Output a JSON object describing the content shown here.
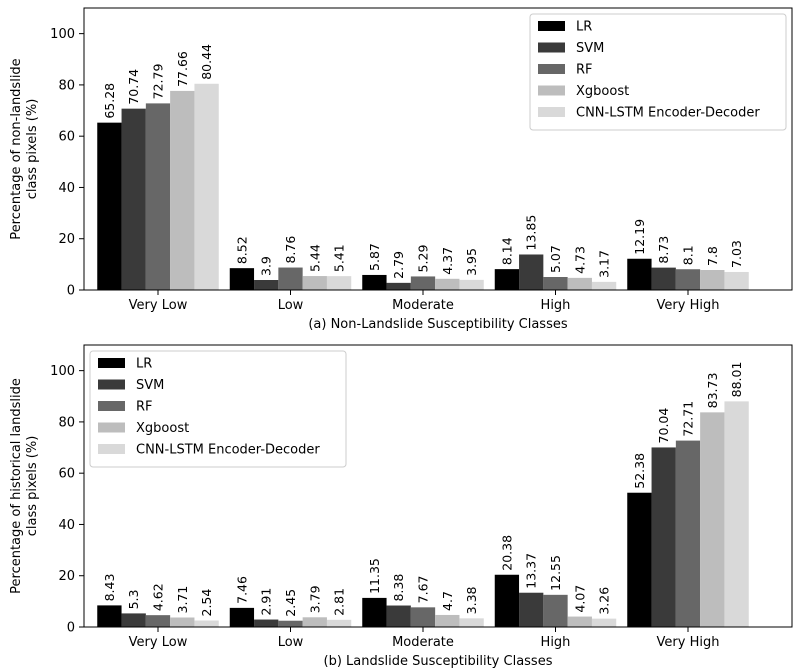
{
  "chart_data": [
    {
      "type": "bar",
      "categories": [
        "Very Low",
        "Low",
        "Moderate",
        "High",
        "Very High"
      ],
      "series": [
        {
          "name": "LR",
          "values": [
            65.28,
            8.52,
            5.87,
            8.14,
            12.19
          ]
        },
        {
          "name": "SVM",
          "values": [
            70.74,
            3.9,
            2.79,
            13.85,
            8.73
          ]
        },
        {
          "name": "RF",
          "values": [
            72.79,
            8.76,
            5.29,
            5.07,
            8.1
          ]
        },
        {
          "name": "Xgboost",
          "values": [
            77.66,
            5.44,
            4.37,
            4.73,
            7.8
          ]
        },
        {
          "name": "CNN-LSTM Encoder-Decoder",
          "values": [
            80.44,
            5.41,
            3.95,
            3.17,
            7.03
          ]
        }
      ],
      "value_labels": [
        [
          "65.28",
          "8.52",
          "5.87",
          "8.14",
          "12.19"
        ],
        [
          "70.74",
          "3.9",
          "2.79",
          "13.85",
          "8.73"
        ],
        [
          "72.79",
          "8.76",
          "5.29",
          "5.07",
          "8.1"
        ],
        [
          "77.66",
          "5.44",
          "4.37",
          "4.73",
          "7.8"
        ],
        [
          "80.44",
          "5.41",
          "3.95",
          "3.17",
          "7.03"
        ]
      ],
      "xlabel": "(a) Non-Landslide Susceptibility Classes",
      "ylabel_lines": [
        "Percentage of non-landslide",
        "class pixels (%)"
      ],
      "ylim": [
        0,
        110
      ],
      "yticks": [
        0,
        20,
        40,
        60,
        80,
        100
      ],
      "legend_position": "top-right",
      "grid": false
    },
    {
      "type": "bar",
      "categories": [
        "Very Low",
        "Low",
        "Moderate",
        "High",
        "Very High"
      ],
      "series": [
        {
          "name": "LR",
          "values": [
            8.43,
            7.46,
            11.35,
            20.38,
            52.38
          ]
        },
        {
          "name": "SVM",
          "values": [
            5.3,
            2.91,
            8.38,
            13.37,
            70.04
          ]
        },
        {
          "name": "RF",
          "values": [
            4.62,
            2.45,
            7.67,
            12.55,
            72.71
          ]
        },
        {
          "name": "Xgboost",
          "values": [
            3.71,
            3.79,
            4.7,
            4.07,
            83.73
          ]
        },
        {
          "name": "CNN-LSTM Encoder-Decoder",
          "values": [
            2.54,
            2.81,
            3.38,
            3.26,
            88.01
          ]
        }
      ],
      "value_labels": [
        [
          "8.43",
          "7.46",
          "11.35",
          "20.38",
          "52.38"
        ],
        [
          "5.3",
          "2.91",
          "8.38",
          "13.37",
          "70.04"
        ],
        [
          "4.62",
          "2.45",
          "7.67",
          "12.55",
          "72.71"
        ],
        [
          "3.71",
          "3.79",
          "4.7",
          "4.07",
          "83.73"
        ],
        [
          "2.54",
          "2.81",
          "3.38",
          "3.26",
          "88.01"
        ]
      ],
      "xlabel": "(b) Landslide Susceptibility Classes",
      "ylabel_lines": [
        "Percentage of historical landslide",
        "class pixels (%)"
      ],
      "ylim": [
        0,
        110
      ],
      "yticks": [
        0,
        20,
        40,
        60,
        80,
        100
      ],
      "legend_position": "top-left",
      "grid": false
    }
  ],
  "colors": [
    "#000000",
    "#3a3a3a",
    "#676767",
    "#bdbdbd",
    "#d9d9d9"
  ]
}
